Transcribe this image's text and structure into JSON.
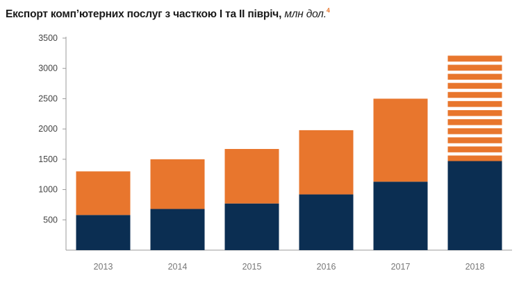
{
  "title": {
    "main": "Експорт комп’ютерних послуг з часткою І та ІІ півріч,",
    "unit": " млн дол.",
    "footnote": "4"
  },
  "colors": {
    "first_half": "#0b2e52",
    "second_half": "#e8762d",
    "forecast_stripe": "#e8762d",
    "axis": "#999999"
  },
  "chart_data": {
    "type": "bar",
    "stacked": true,
    "title": "Експорт комп’ютерних послуг з часткою І та ІІ півріч, млн дол.",
    "categories": [
      "2013",
      "2014",
      "2015",
      "2016",
      "2017",
      "2018"
    ],
    "series": [
      {
        "values": [
          580,
          680,
          770,
          920,
          1130,
          1470
        ]
      },
      {
        "values": [
          720,
          820,
          900,
          1060,
          1370,
          1740
        ]
      }
    ],
    "totals": [
      1300,
      1500,
      1670,
      1980,
      2500,
      3210
    ],
    "last_segment_striped": true,
    "ylim": [
      0,
      3500
    ],
    "yticks": [
      500,
      1000,
      1500,
      2000,
      2500,
      3000,
      3500
    ],
    "xlabel": "",
    "ylabel": "",
    "grid": false,
    "legend": "none"
  }
}
